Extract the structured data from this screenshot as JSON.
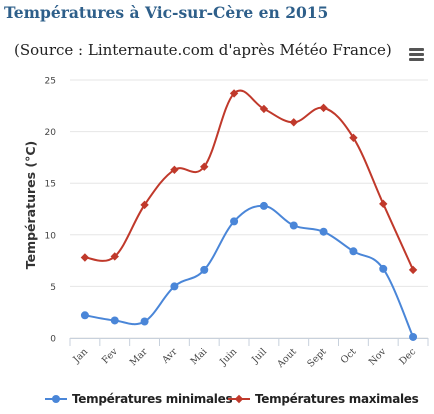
{
  "page": {
    "title": "Températures à Vic-sur-Cère en 2015"
  },
  "chart_data": {
    "type": "line",
    "title": "",
    "subtitle": "(Source : Linternaute.com d'après Météo France)",
    "xlabel": "",
    "ylabel": "Températures (°C)",
    "categories": [
      "Jan",
      "Fev",
      "Mar",
      "Avr",
      "Mai",
      "Juin",
      "Juil",
      "Aout",
      "Sept",
      "Oct",
      "Nov",
      "Dec"
    ],
    "ylim": [
      0,
      25
    ],
    "yticks": [
      "0",
      "5",
      "10",
      "15",
      "20",
      "25"
    ],
    "grid": true,
    "legend_position": "bottom",
    "series": [
      {
        "name": "Températures minimales",
        "color": "#4a86d8",
        "marker": "circle",
        "values": [
          2.2,
          1.7,
          1.6,
          5.0,
          6.6,
          11.3,
          12.8,
          10.9,
          10.3,
          8.4,
          6.7,
          0.1
        ]
      },
      {
        "name": "Températures maximales",
        "color": "#c0392b",
        "marker": "diamond",
        "values": [
          7.8,
          7.9,
          12.9,
          16.3,
          16.6,
          23.7,
          22.2,
          20.9,
          22.3,
          19.4,
          13.0,
          6.6
        ]
      }
    ]
  },
  "controls": {
    "menu_icon": "hamburger-menu-icon"
  }
}
